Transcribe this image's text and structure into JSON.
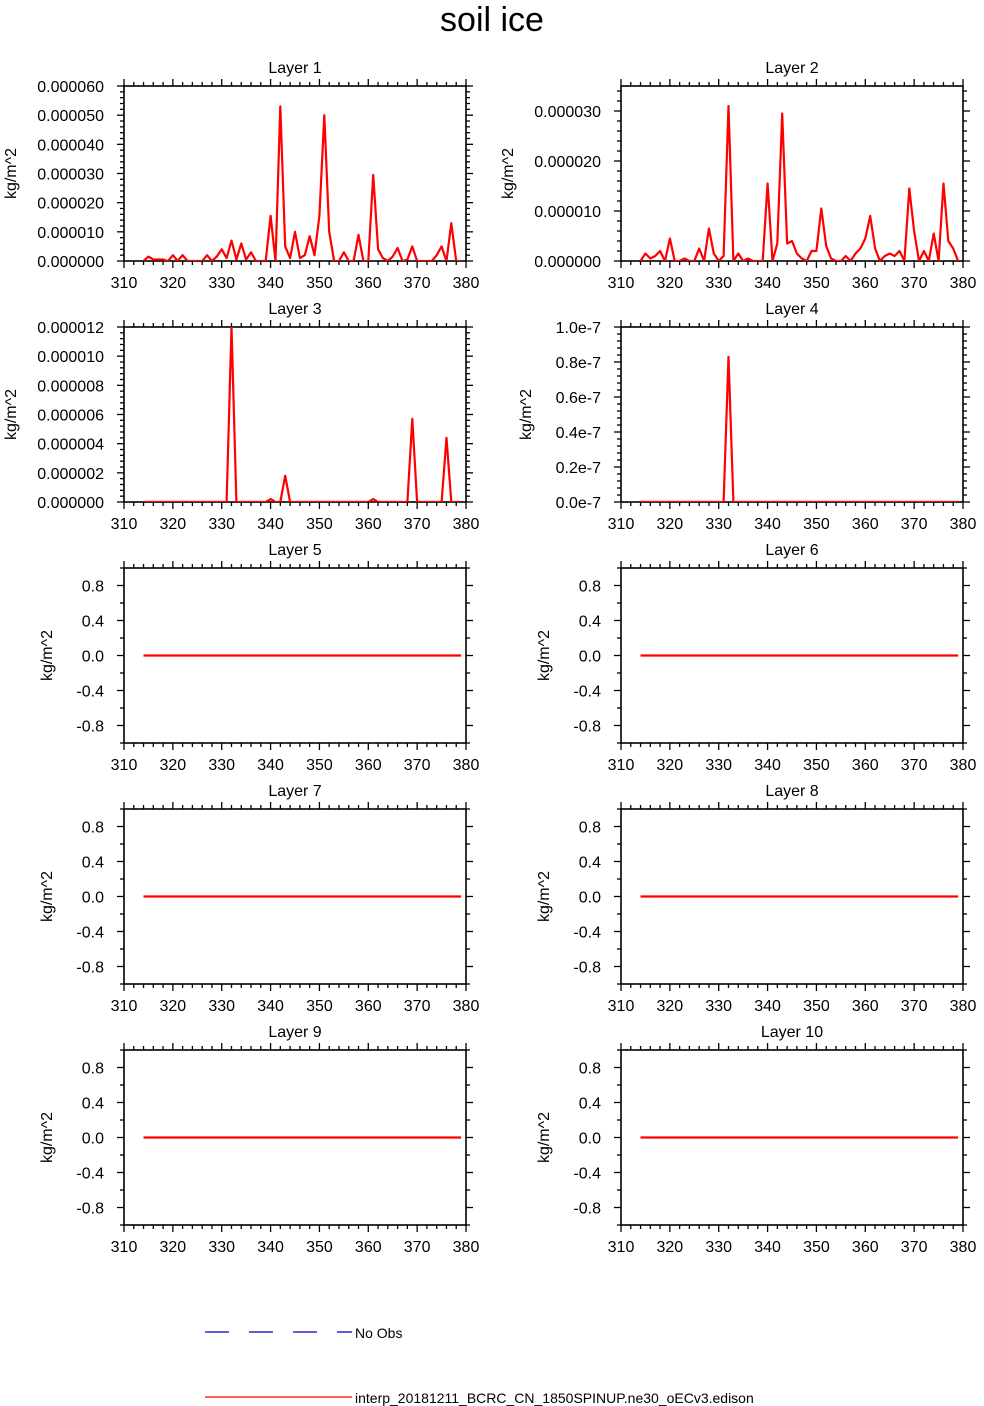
{
  "figure": {
    "title": "soil ice"
  },
  "colors": {
    "model": "#ff0000",
    "obs": "#0000cc"
  },
  "legend": [
    {
      "label": "No Obs",
      "style": "dashed",
      "color": "#0000cc"
    },
    {
      "label": "interp_20181211_BCRC_CN_1850SPINUP.ne30_oECv3.edison",
      "style": "solid",
      "color": "#ff0000"
    }
  ],
  "chart_data": [
    {
      "type": "line",
      "title": "Layer 1",
      "ylabel": "kg/m^2",
      "xlim": [
        310,
        380
      ],
      "xticks": [
        310,
        320,
        330,
        340,
        350,
        360,
        370,
        380
      ],
      "ylim": [
        0,
        6e-05
      ],
      "yticks": [
        "0.000000",
        "0.000010",
        "0.000020",
        "0.000030",
        "0.000040",
        "0.000050",
        "0.000060"
      ],
      "ytick_values": [
        0,
        1e-05,
        2e-05,
        3e-05,
        4e-05,
        5e-05,
        6e-05
      ],
      "series": [
        {
          "x": [
            314,
            315,
            316,
            317,
            318,
            319,
            320,
            321,
            322,
            323,
            324,
            325,
            326,
            327,
            328,
            329,
            330,
            331,
            332,
            333,
            334,
            335,
            336,
            337,
            338,
            339,
            340,
            341,
            342,
            343,
            344,
            345,
            346,
            347,
            348,
            349,
            350,
            351,
            352,
            353,
            354,
            355,
            356,
            357,
            358,
            359,
            360,
            361,
            362,
            363,
            364,
            365,
            366,
            367,
            368,
            369,
            370,
            371,
            372,
            373,
            374,
            375,
            376,
            377,
            378,
            379
          ],
          "y": [
            0,
            1.5e-06,
            5e-07,
            5e-07,
            5e-07,
            0,
            2e-06,
            0,
            2e-06,
            0,
            0,
            0,
            0,
            2e-06,
            0,
            1.5e-06,
            4e-06,
            1e-06,
            7e-06,
            5e-07,
            6e-06,
            5e-07,
            3e-06,
            0,
            0,
            0,
            1.55e-05,
            0,
            5.3e-05,
            5e-06,
            1e-06,
            1e-05,
            1e-06,
            2e-06,
            8.5e-06,
            2e-06,
            1.55e-05,
            5e-05,
            1e-05,
            0,
            0,
            3e-06,
            0,
            0,
            9e-06,
            0,
            0,
            2.95e-05,
            4e-06,
            1e-06,
            0,
            1.5e-06,
            4.5e-06,
            0,
            5e-07,
            5e-06,
            0,
            0,
            0,
            0,
            2e-06,
            5e-06,
            0,
            1.3e-05,
            0,
            0
          ]
        }
      ]
    },
    {
      "type": "line",
      "title": "Layer 2",
      "ylabel": "kg/m^2",
      "xlim": [
        310,
        380
      ],
      "xticks": [
        310,
        320,
        330,
        340,
        350,
        360,
        370,
        380
      ],
      "ylim": [
        0,
        3.5e-05
      ],
      "yticks": [
        "0.000000",
        "0.000010",
        "0.000020",
        "0.000030"
      ],
      "ytick_values": [
        0,
        1e-05,
        2e-05,
        3e-05
      ],
      "series": [
        {
          "x": [
            314,
            315,
            316,
            317,
            318,
            319,
            320,
            321,
            322,
            323,
            324,
            325,
            326,
            327,
            328,
            329,
            330,
            331,
            332,
            333,
            334,
            335,
            336,
            337,
            338,
            339,
            340,
            341,
            342,
            343,
            344,
            345,
            346,
            347,
            348,
            349,
            350,
            351,
            352,
            353,
            354,
            355,
            356,
            357,
            358,
            359,
            360,
            361,
            362,
            363,
            364,
            365,
            366,
            367,
            368,
            369,
            370,
            371,
            372,
            373,
            374,
            375,
            376,
            377,
            378,
            379
          ],
          "y": [
            0,
            1.5e-06,
            5e-07,
            1e-06,
            2e-06,
            0,
            4.5e-06,
            0,
            0,
            5e-07,
            0,
            0,
            2.5e-06,
            0,
            6.5e-06,
            1.5e-06,
            0,
            1e-06,
            3.1e-05,
            0,
            1.5e-06,
            0,
            5e-07,
            0,
            0,
            0,
            1.55e-05,
            0,
            3.5e-06,
            2.95e-05,
            3.5e-06,
            4e-06,
            1.5e-06,
            5e-07,
            0,
            2e-06,
            2e-06,
            1.05e-05,
            3e-06,
            5e-07,
            0,
            0,
            1e-06,
            0,
            1.5e-06,
            2.5e-06,
            4.5e-06,
            9e-06,
            2.5e-06,
            0,
            1e-06,
            1.5e-06,
            1e-06,
            2e-06,
            0,
            1.45e-05,
            6e-06,
            0,
            2e-06,
            0,
            5.5e-06,
            0,
            1.55e-05,
            4e-06,
            2.5e-06,
            0
          ]
        }
      ]
    },
    {
      "type": "line",
      "title": "Layer 3",
      "ylabel": "kg/m^2",
      "xlim": [
        310,
        380
      ],
      "xticks": [
        310,
        320,
        330,
        340,
        350,
        360,
        370,
        380
      ],
      "ylim": [
        0,
        1.2e-05
      ],
      "yticks": [
        "0.000000",
        "0.000002",
        "0.000004",
        "0.000006",
        "0.000008",
        "0.000010",
        "0.000012"
      ],
      "ytick_values": [
        0,
        2e-06,
        4e-06,
        6e-06,
        8e-06,
        1e-05,
        1.2e-05
      ],
      "series": [
        {
          "x": [
            314,
            316,
            318,
            320,
            322,
            324,
            326,
            328,
            329,
            330,
            331,
            332,
            333,
            334,
            336,
            338,
            339,
            340,
            341,
            342,
            343,
            344,
            346,
            348,
            350,
            352,
            354,
            356,
            358,
            360,
            361,
            362,
            364,
            366,
            368,
            369,
            370,
            372,
            374,
            375,
            376,
            377,
            378,
            379
          ],
          "y": [
            0,
            0,
            0,
            0,
            0,
            0,
            0,
            0,
            0,
            0,
            0,
            1.2e-05,
            0,
            0,
            0,
            0,
            0,
            2e-07,
            0,
            0,
            1.8e-06,
            0,
            0,
            0,
            0,
            0,
            0,
            0,
            0,
            0,
            2e-07,
            0,
            0,
            0,
            0,
            5.7e-06,
            0,
            0,
            0,
            0,
            4.4e-06,
            0,
            0,
            0
          ]
        }
      ]
    },
    {
      "type": "line",
      "title": "Layer 4",
      "ylabel": "kg/m^2",
      "xlim": [
        310,
        380
      ],
      "xticks": [
        310,
        320,
        330,
        340,
        350,
        360,
        370,
        380
      ],
      "ylim": [
        0,
        1e-07
      ],
      "yticks": [
        "0.0e-7",
        "0.2e-7",
        "0.4e-7",
        "0.6e-7",
        "0.8e-7",
        "1.0e-7"
      ],
      "ytick_values": [
        0,
        2e-08,
        4e-08,
        6e-08,
        8e-08,
        1e-07
      ],
      "series": [
        {
          "x": [
            314,
            320,
            325,
            330,
            331,
            332,
            333,
            334,
            340,
            350,
            360,
            370,
            379
          ],
          "y": [
            0,
            0,
            0,
            0,
            0,
            8.3e-08,
            0,
            0,
            0,
            0,
            0,
            0,
            0
          ]
        }
      ]
    },
    {
      "type": "line",
      "title": "Layer 5",
      "ylabel": "kg/m^2",
      "xlim": [
        310,
        380
      ],
      "xticks": [
        310,
        320,
        330,
        340,
        350,
        360,
        370,
        380
      ],
      "ylim": [
        -1,
        1
      ],
      "yticks": [
        "-0.8",
        "-0.4",
        "0.0",
        "0.4",
        "0.8"
      ],
      "ytick_values": [
        -0.8,
        -0.4,
        0,
        0.4,
        0.8
      ],
      "series": [
        {
          "x": [
            314,
            379
          ],
          "y": [
            0,
            0
          ]
        }
      ]
    },
    {
      "type": "line",
      "title": "Layer 6",
      "ylabel": "kg/m^2",
      "xlim": [
        310,
        380
      ],
      "xticks": [
        310,
        320,
        330,
        340,
        350,
        360,
        370,
        380
      ],
      "ylim": [
        -1,
        1
      ],
      "yticks": [
        "-0.8",
        "-0.4",
        "0.0",
        "0.4",
        "0.8"
      ],
      "ytick_values": [
        -0.8,
        -0.4,
        0,
        0.4,
        0.8
      ],
      "series": [
        {
          "x": [
            314,
            379
          ],
          "y": [
            0,
            0
          ]
        }
      ]
    },
    {
      "type": "line",
      "title": "Layer 7",
      "ylabel": "kg/m^2",
      "xlim": [
        310,
        380
      ],
      "xticks": [
        310,
        320,
        330,
        340,
        350,
        360,
        370,
        380
      ],
      "ylim": [
        -1,
        1
      ],
      "yticks": [
        "-0.8",
        "-0.4",
        "0.0",
        "0.4",
        "0.8"
      ],
      "ytick_values": [
        -0.8,
        -0.4,
        0,
        0.4,
        0.8
      ],
      "series": [
        {
          "x": [
            314,
            379
          ],
          "y": [
            0,
            0
          ]
        }
      ]
    },
    {
      "type": "line",
      "title": "Layer 8",
      "ylabel": "kg/m^2",
      "xlim": [
        310,
        380
      ],
      "xticks": [
        310,
        320,
        330,
        340,
        350,
        360,
        370,
        380
      ],
      "ylim": [
        -1,
        1
      ],
      "yticks": [
        "-0.8",
        "-0.4",
        "0.0",
        "0.4",
        "0.8"
      ],
      "ytick_values": [
        -0.8,
        -0.4,
        0,
        0.4,
        0.8
      ],
      "series": [
        {
          "x": [
            314,
            379
          ],
          "y": [
            0,
            0
          ]
        }
      ]
    },
    {
      "type": "line",
      "title": "Layer 9",
      "ylabel": "kg/m^2",
      "xlim": [
        310,
        380
      ],
      "xticks": [
        310,
        320,
        330,
        340,
        350,
        360,
        370,
        380
      ],
      "ylim": [
        -1,
        1
      ],
      "yticks": [
        "-0.8",
        "-0.4",
        "0.0",
        "0.4",
        "0.8"
      ],
      "ytick_values": [
        -0.8,
        -0.4,
        0,
        0.4,
        0.8
      ],
      "series": [
        {
          "x": [
            314,
            379
          ],
          "y": [
            0,
            0
          ]
        }
      ]
    },
    {
      "type": "line",
      "title": "Layer 10",
      "ylabel": "kg/m^2",
      "xlim": [
        310,
        380
      ],
      "xticks": [
        310,
        320,
        330,
        340,
        350,
        360,
        370,
        380
      ],
      "ylim": [
        -1,
        1
      ],
      "yticks": [
        "-0.8",
        "-0.4",
        "0.0",
        "0.4",
        "0.8"
      ],
      "ytick_values": [
        -0.8,
        -0.4,
        0,
        0.4,
        0.8
      ],
      "series": [
        {
          "x": [
            314,
            379
          ],
          "y": [
            0,
            0
          ]
        }
      ]
    }
  ]
}
